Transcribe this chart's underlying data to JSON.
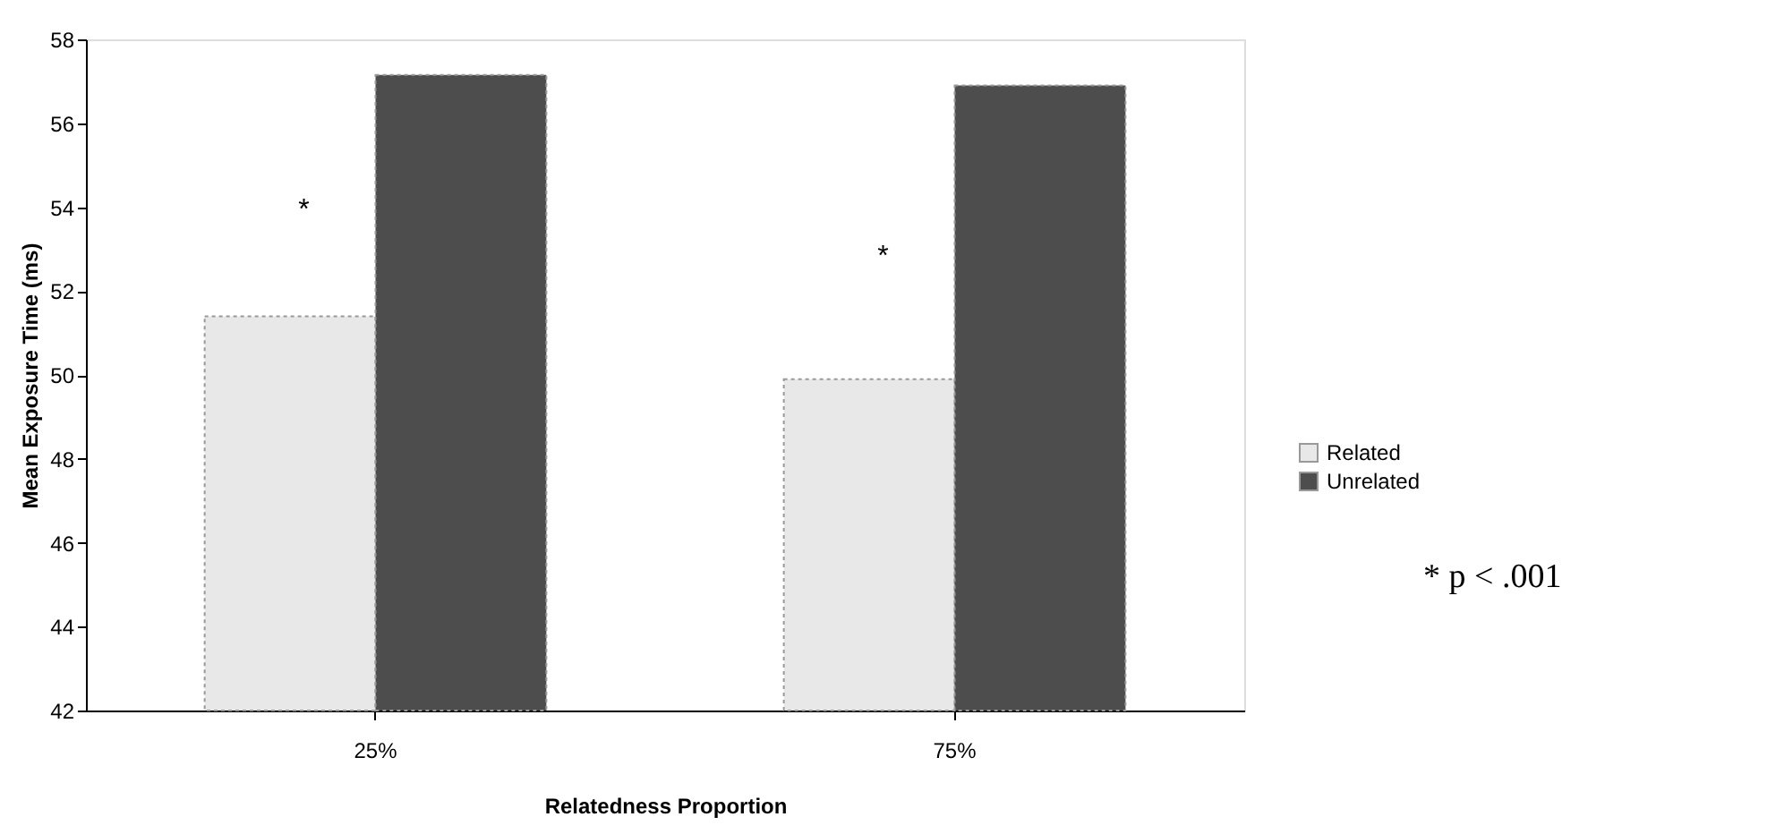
{
  "chart_data": {
    "type": "bar",
    "xlabel": "Relatedness Proportion",
    "ylabel": "Mean Exposure Time (ms)",
    "categories": [
      "25%",
      "75%"
    ],
    "series": [
      {
        "name": "Related",
        "color": "#e8e8e8",
        "values": [
          51.4,
          49.9
        ]
      },
      {
        "name": "Unrelated",
        "color": "#4d4d4d",
        "values": [
          57.15,
          56.9
        ]
      }
    ],
    "ylim": [
      42,
      58
    ],
    "yticks": [
      42,
      44,
      46,
      48,
      50,
      52,
      54,
      56,
      58
    ],
    "grid": false,
    "legend": "right",
    "annotations": [
      {
        "text": "*",
        "x": "25%",
        "y": 54.2
      },
      {
        "text": "*",
        "x": "75%",
        "y": 53.1
      },
      "* p < .001"
    ]
  }
}
